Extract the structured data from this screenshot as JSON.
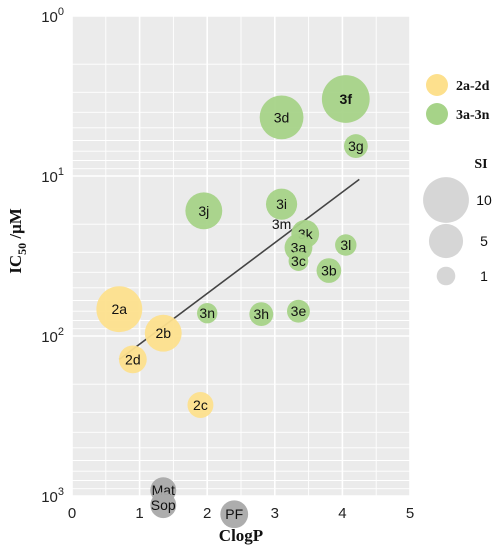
{
  "chart_data": {
    "type": "scatter",
    "xlabel": "ClogP",
    "ylabel": "IC50 /μM",
    "xlim": [
      0,
      5
    ],
    "ylim": [
      1000,
      1
    ],
    "y_scale": "log",
    "y_axis_reversed": true,
    "grid": true,
    "x_ticks": [
      "0",
      "1",
      "2",
      "3",
      "4",
      "5"
    ],
    "y_ticks": [
      {
        "base": "10",
        "exp": "0",
        "value": 1
      },
      {
        "base": "10",
        "exp": "1",
        "value": 10
      },
      {
        "base": "10",
        "exp": "2",
        "value": 100
      },
      {
        "base": "10",
        "exp": "3",
        "value": 1000
      }
    ],
    "legend_position": "right",
    "series": [
      {
        "name": "2a-2d",
        "color": "#fde08d",
        "points": [
          {
            "label": "2a",
            "x": 0.7,
            "y": 68,
            "si": 10
          },
          {
            "label": "2b",
            "x": 1.35,
            "y": 96,
            "si": 6
          },
          {
            "label": "2d",
            "x": 0.9,
            "y": 140,
            "si": 3
          },
          {
            "label": "2c",
            "x": 1.9,
            "y": 270,
            "si": 2.5
          }
        ]
      },
      {
        "name": "3a-3n",
        "color": "#a6d388",
        "points": [
          {
            "label": "3f",
            "x": 4.05,
            "y": 3.3,
            "si": 11
          },
          {
            "label": "3d",
            "x": 3.1,
            "y": 4.3,
            "si": 9
          },
          {
            "label": "3g",
            "x": 4.2,
            "y": 6.5,
            "si": 2
          },
          {
            "label": "3j",
            "x": 1.95,
            "y": 16.5,
            "si": 6
          },
          {
            "label": "3i",
            "x": 3.1,
            "y": 15,
            "si": 4
          },
          {
            "label": "3m",
            "x": 3.1,
            "y": 20,
            "si": 0
          },
          {
            "label": "3k",
            "x": 3.45,
            "y": 23,
            "si": 3
          },
          {
            "label": "3a",
            "x": 3.35,
            "y": 28,
            "si": 3
          },
          {
            "label": "3l",
            "x": 4.05,
            "y": 27,
            "si": 1.5
          },
          {
            "label": "3c",
            "x": 3.35,
            "y": 34,
            "si": 1.2
          },
          {
            "label": "3b",
            "x": 3.8,
            "y": 39,
            "si": 2.2
          },
          {
            "label": "3n",
            "x": 2.0,
            "y": 72,
            "si": 1.3
          },
          {
            "label": "3h",
            "x": 2.8,
            "y": 73,
            "si": 2
          },
          {
            "label": "3e",
            "x": 3.35,
            "y": 70,
            "si": 1.8
          }
        ]
      },
      {
        "color": "#a9a9a9",
        "points": [
          {
            "label": "Mat",
            "x": 1.35,
            "y": 920,
            "si": 2.5
          },
          {
            "label": "Sop",
            "x": 1.35,
            "y": 1140,
            "si": 2.5
          },
          {
            "label": "PF",
            "x": 2.4,
            "y": 1300,
            "si": 3
          }
        ]
      }
    ],
    "trend_line": {
      "color": "#444444",
      "from": {
        "x": 0.7,
        "y": 140
      },
      "to": {
        "x": 4.25,
        "y": 10.5
      }
    },
    "size_legend": {
      "title": "SI",
      "items": [
        {
          "label": "10",
          "si": 10
        },
        {
          "label": "5",
          "si": 5
        },
        {
          "label": "1",
          "si": 1
        }
      ],
      "color": "#d6d6d6"
    }
  }
}
